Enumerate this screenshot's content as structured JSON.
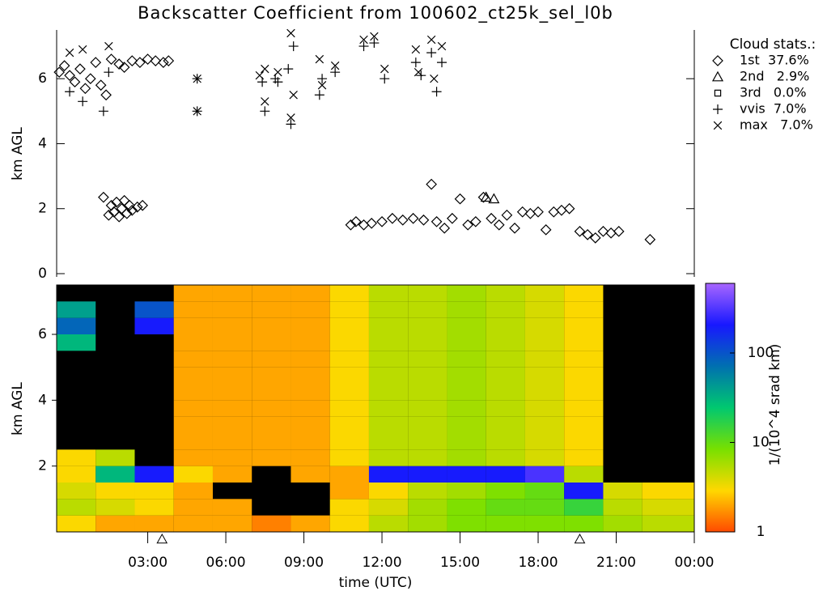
{
  "chart_data": [
    {
      "type": "scatter",
      "title": "Backscatter Coefficient from 100602_ct25k_sel_l0b",
      "y_label": "km AGL",
      "xlim": [
        -0.5,
        24
      ],
      "ylim": [
        0,
        7.5
      ],
      "yticks": [
        0,
        2,
        4,
        6
      ],
      "legend_title": "Cloud stats.:",
      "legend_position": "right",
      "series": [
        {
          "name": "1st  37.6%",
          "marker": "diamond",
          "color": "#000000",
          "x": [
            -0.4,
            -0.2,
            0,
            0.2,
            0.4,
            0.6,
            0.8,
            1.0,
            1.2,
            1.4,
            1.6,
            1.3,
            1.5,
            1.6,
            1.7,
            1.8,
            1.9,
            2.0,
            2.1,
            2.2,
            2.3,
            2.4,
            2.6,
            2.8,
            1.9,
            2.1,
            2.4,
            2.7,
            3.0,
            3.3,
            3.6,
            3.8,
            10.8,
            11.0,
            11.3,
            11.6,
            12.0,
            12.4,
            12.8,
            13.2,
            13.6,
            13.9,
            14.1,
            14.4,
            14.7,
            15.0,
            15.3,
            15.6,
            15.9,
            16.2,
            16.5,
            16.8,
            17.1,
            17.4,
            17.7,
            18.0,
            18.3,
            18.6,
            18.9,
            19.2,
            19.6,
            19.9,
            20.2,
            20.5,
            20.8,
            21.1,
            22.3
          ],
          "values": [
            6.2,
            6.4,
            6.1,
            5.9,
            6.3,
            5.7,
            6.0,
            6.5,
            5.8,
            5.5,
            6.6,
            2.35,
            1.8,
            2.1,
            1.9,
            2.2,
            1.75,
            2.0,
            2.25,
            1.85,
            2.1,
            1.95,
            2.05,
            2.1,
            6.45,
            6.35,
            6.55,
            6.5,
            6.6,
            6.55,
            6.5,
            6.55,
            1.5,
            1.6,
            1.5,
            1.55,
            1.6,
            1.7,
            1.65,
            1.7,
            1.65,
            2.75,
            1.6,
            1.4,
            1.7,
            2.3,
            1.5,
            1.6,
            2.35,
            1.7,
            1.5,
            1.8,
            1.4,
            1.9,
            1.85,
            1.9,
            1.35,
            1.9,
            1.95,
            2.0,
            1.3,
            1.2,
            1.1,
            1.3,
            1.25,
            1.3,
            1.05
          ]
        },
        {
          "name": "2nd   2.9%",
          "marker": "triangle",
          "color": "#000000",
          "x": [
            16.0,
            16.3
          ],
          "values": [
            2.35,
            2.3
          ]
        },
        {
          "name": "3rd   0.0%",
          "marker": "square",
          "color": "#000000",
          "x": [],
          "values": []
        },
        {
          "name": "vvis  7.0%",
          "marker": "plus",
          "color": "#000000",
          "x": [
            0,
            0.5,
            1.3,
            1.5,
            4.9,
            4.9,
            7.4,
            7.5,
            7.9,
            8.0,
            8.4,
            8.5,
            8.6,
            9.6,
            9.7,
            10.2,
            11.3,
            11.7,
            12.1,
            13.3,
            13.5,
            13.9,
            14.1,
            14.3
          ],
          "values": [
            5.6,
            5.3,
            5.0,
            6.2,
            6.0,
            5.0,
            5.9,
            5.0,
            6.0,
            5.9,
            6.3,
            4.6,
            7.0,
            5.5,
            6.0,
            6.2,
            7.0,
            7.1,
            6.0,
            6.5,
            6.1,
            6.8,
            5.6,
            6.5
          ]
        },
        {
          "name": "max   7.0%",
          "marker": "cross",
          "color": "#000000",
          "x": [
            0,
            0.5,
            1.5,
            4.9,
            4.9,
            7.3,
            7.5,
            7.5,
            8.0,
            8.5,
            8.5,
            8.6,
            9.6,
            9.7,
            10.2,
            11.3,
            11.7,
            12.1,
            13.3,
            13.4,
            13.9,
            14.0,
            14.3
          ],
          "values": [
            6.8,
            6.9,
            7.0,
            6.0,
            5.0,
            6.1,
            5.3,
            6.3,
            6.2,
            7.4,
            4.8,
            5.5,
            6.6,
            5.8,
            6.4,
            7.2,
            7.3,
            6.3,
            6.9,
            6.2,
            7.2,
            6.0,
            7.0
          ]
        }
      ]
    },
    {
      "type": "heatmap",
      "y_label": "km AGL",
      "x_label": "time (UTC)",
      "xlim": [
        -0.5,
        24
      ],
      "ylim": [
        0,
        7.5
      ],
      "yticks": [
        2,
        4,
        6
      ],
      "xticks": [
        {
          "value": 3,
          "label": "03:00"
        },
        {
          "value": 6,
          "label": "06:00"
        },
        {
          "value": 9,
          "label": "09:00"
        },
        {
          "value": 12,
          "label": "12:00"
        },
        {
          "value": 15,
          "label": "15:00"
        },
        {
          "value": 18,
          "label": "18:00"
        },
        {
          "value": 21,
          "label": "21:00"
        },
        {
          "value": 24,
          "label": "00:00"
        }
      ],
      "triangle_markers_x": [
        3.55,
        19.6
      ],
      "x_edges": [
        -0.5,
        1,
        2.5,
        4,
        5.5,
        7,
        8.5,
        10,
        11.5,
        13,
        14.5,
        16,
        17.5,
        19,
        20.5,
        22,
        24
      ],
      "y_edges": [
        0,
        0.5,
        1,
        1.5,
        2,
        2.5,
        3,
        3.5,
        4,
        4.5,
        5,
        5.5,
        6,
        6.5,
        7,
        7.5
      ],
      "z": [
        [
          3,
          2,
          2,
          2,
          2,
          1.5,
          2,
          3,
          5,
          6,
          8,
          8,
          8,
          8,
          6,
          5
        ],
        [
          5,
          4,
          3,
          2,
          2,
          null,
          null,
          3,
          4,
          6,
          8,
          10,
          10,
          15,
          5,
          4
        ],
        [
          4,
          3,
          3,
          2,
          null,
          null,
          null,
          2,
          3,
          5,
          6,
          8,
          10,
          200,
          4,
          3
        ],
        [
          3,
          30,
          200,
          3,
          2,
          null,
          2,
          2,
          200,
          200,
          200,
          200,
          300,
          5,
          null,
          null
        ],
        [
          3,
          5,
          null,
          2,
          2,
          2,
          2,
          3,
          5,
          5,
          6,
          5,
          4,
          3,
          null,
          null
        ],
        [
          null,
          null,
          null,
          2,
          2,
          2,
          2,
          3,
          5,
          5,
          6,
          5,
          4,
          3,
          null,
          null
        ],
        [
          null,
          null,
          null,
          2,
          2,
          2,
          2,
          3,
          5,
          5,
          6,
          5,
          4,
          3,
          null,
          null
        ],
        [
          null,
          null,
          null,
          2,
          2,
          2,
          2,
          3,
          5,
          5,
          6,
          5,
          4,
          3,
          null,
          null
        ],
        [
          null,
          null,
          null,
          2,
          2,
          2,
          2,
          3,
          5,
          5,
          6,
          5,
          4,
          3,
          null,
          null
        ],
        [
          null,
          null,
          null,
          2,
          2,
          2,
          2,
          3,
          5,
          5,
          6,
          5,
          4,
          3,
          null,
          null
        ],
        [
          null,
          null,
          null,
          2,
          2,
          2,
          2,
          3,
          5,
          5,
          6,
          5,
          4,
          3,
          null,
          null
        ],
        [
          30,
          null,
          null,
          2,
          2,
          2,
          2,
          3,
          5,
          5,
          6,
          5,
          4,
          3,
          null,
          null
        ],
        [
          80,
          null,
          200,
          2,
          2,
          2,
          2,
          3,
          5,
          5,
          6,
          5,
          4,
          3,
          null,
          null
        ],
        [
          40,
          null,
          100,
          2,
          2,
          2,
          2,
          3,
          5,
          5,
          6,
          5,
          4,
          3,
          null,
          null
        ],
        [
          null,
          null,
          null,
          2,
          2,
          2,
          2,
          3,
          5,
          5,
          6,
          5,
          4,
          3,
          null,
          null
        ]
      ],
      "colorbar": {
        "label": "1/(10^4 srad km)",
        "scale": "log",
        "lim": [
          1,
          600
        ],
        "ticks": [
          1,
          10,
          100
        ],
        "colors": [
          "#ff4a00",
          "#ffd800",
          "#78e000",
          "#00c870",
          "#0070b0",
          "#1818ff",
          "#a866ff"
        ]
      }
    }
  ]
}
